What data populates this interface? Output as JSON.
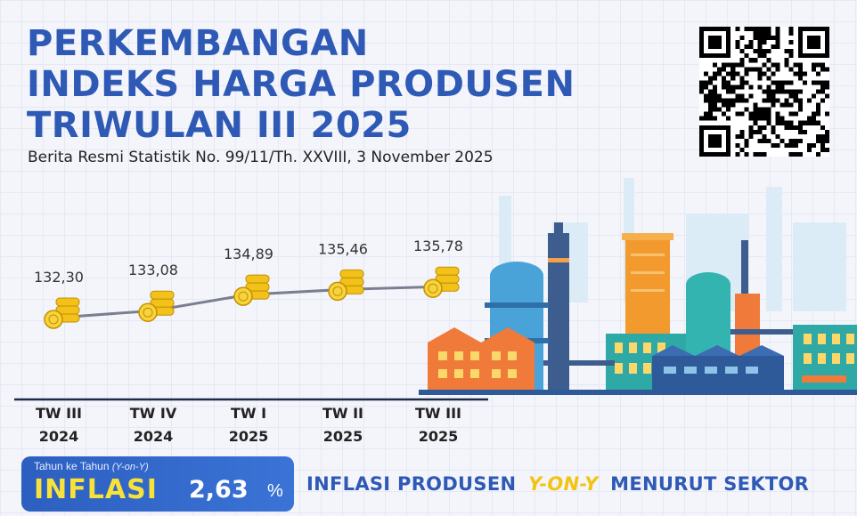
{
  "header": {
    "title_lines": [
      "PERKEMBANGAN",
      "INDEKS HARGA PRODUSEN",
      "TRIWULAN III 2025"
    ],
    "subtitle": "Berita Resmi Statistik No. 99/11/Th. XXVIII, 3 November 2025"
  },
  "qr_code": {
    "icon": "qr-code-icon"
  },
  "chart_data": {
    "type": "line",
    "categories": [
      [
        "TW III",
        "2024"
      ],
      [
        "TW IV",
        "2024"
      ],
      [
        "TW I",
        "2025"
      ],
      [
        "TW II",
        "2025"
      ],
      [
        "TW III",
        "2025"
      ]
    ],
    "values": [
      132.3,
      133.08,
      134.89,
      135.46,
      135.78
    ],
    "value_labels": [
      "132,30",
      "133,08",
      "134,89",
      "135,46",
      "135,78"
    ],
    "marker": "coin-stack-icon",
    "colors": {
      "line": "#7a7f90",
      "coin": "#f2c21b"
    }
  },
  "inflation": {
    "caption": "Tahun ke Tahun",
    "caption_abbr": "(Y-on-Y)",
    "label": "INFLASI",
    "value": "2,63",
    "unit": "%"
  },
  "sector_title": {
    "part1": "INFLASI PRODUSEN",
    "highlight": "Y-ON-Y",
    "part2": "MENURUT SEKTOR"
  },
  "colors": {
    "title": "#2e59b5",
    "accent_yellow": "#f8e23a",
    "box_blue": "#2c5fc0"
  },
  "illustration": {
    "icon": "industrial-factory-icon"
  }
}
